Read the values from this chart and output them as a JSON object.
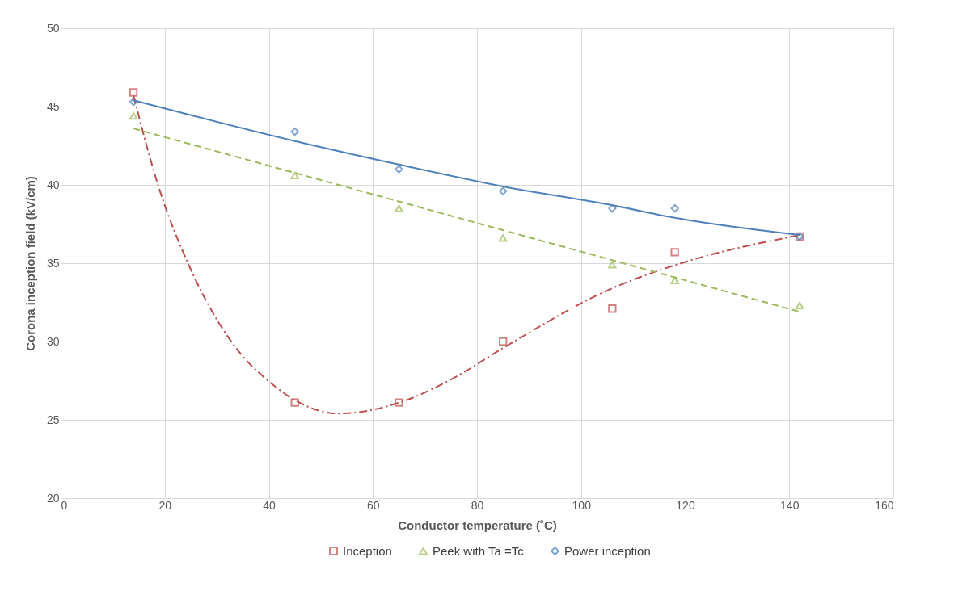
{
  "chart_data": {
    "type": "scatter",
    "xlabel": "Conductor temperature (˚C)",
    "ylabel": "Corona inception field (kV/cm)",
    "xlim": [
      0,
      160
    ],
    "xticks": [
      0,
      20,
      40,
      60,
      80,
      100,
      120,
      140,
      160
    ],
    "ylim": [
      20,
      50
    ],
    "yticks": [
      20,
      25,
      30,
      35,
      40,
      45,
      50
    ],
    "grid": true,
    "legend": "bottom",
    "series": [
      {
        "name": "Inception",
        "marker": "square",
        "color": "#c0504d",
        "x": [
          14,
          45,
          65,
          85,
          106,
          118,
          142
        ],
        "values": [
          45.9,
          26.1,
          26.1,
          30.0,
          32.1,
          35.7,
          36.7
        ]
      },
      {
        "name": "Peek with Ta =Tc",
        "marker": "triangle",
        "color": "#9bbb59",
        "x": [
          14,
          45,
          65,
          85,
          106,
          118,
          142
        ],
        "values": [
          44.4,
          40.6,
          38.5,
          36.6,
          34.9,
          33.9,
          32.3
        ]
      },
      {
        "name": "Power inception",
        "marker": "diamond",
        "color": "#4f81bd",
        "x": [
          14,
          45,
          65,
          85,
          106,
          118,
          142
        ],
        "values": [
          45.3,
          43.4,
          41.0,
          39.6,
          38.5,
          38.5,
          36.7
        ]
      },
      {
        "type": "line",
        "line_style": "dashdot",
        "color": "#c0504d",
        "x": [
          14,
          18.8,
          24.6,
          33,
          40.2,
          53.5,
          65.1,
          75.7,
          85.1,
          106,
          118.3,
          142
        ],
        "values": [
          45.7,
          39.9,
          34.9,
          29.9,
          27.4,
          25.4,
          26.1,
          27.7,
          29.6,
          33.4,
          34.9,
          36.8
        ]
      },
      {
        "type": "line",
        "line_style": "dashed",
        "color": "#9bbb59",
        "x": [
          14,
          142
        ],
        "values": [
          43.6,
          31.9
        ]
      },
      {
        "type": "line",
        "line_style": "solid",
        "color": "#4f81bd",
        "x": [
          14,
          45,
          65,
          85,
          106,
          118,
          142
        ],
        "values": [
          45.4,
          42.8,
          41.3,
          39.9,
          38.7,
          37.9,
          36.8
        ]
      }
    ]
  }
}
